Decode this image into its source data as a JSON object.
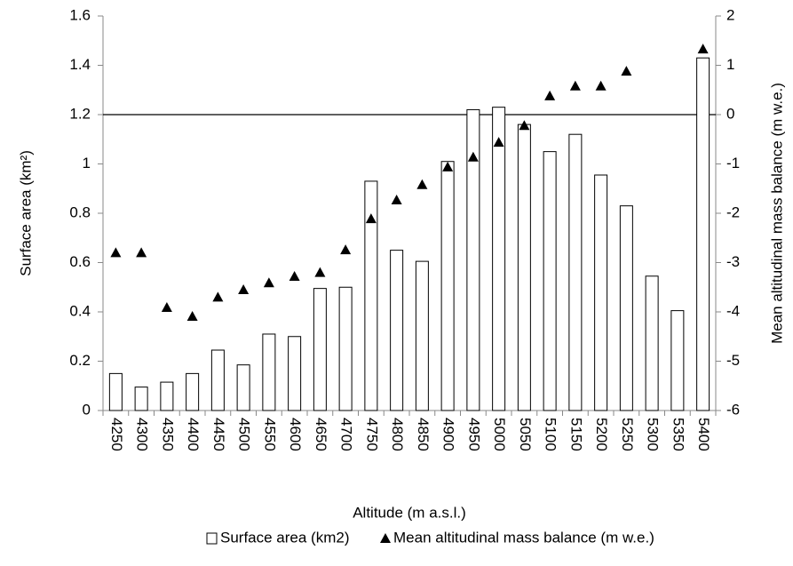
{
  "chart_data": {
    "type": "bar_with_points",
    "x_label": "Altitude (m a.s.l.)",
    "y_label": "Surface area  (km²)",
    "y2_label": "Mean altitudinal mass balance  (m w.e.)",
    "categories": [
      "4250",
      "4300",
      "4350",
      "4400",
      "4450",
      "4500",
      "4550",
      "4600",
      "4650",
      "4700",
      "4750",
      "4800",
      "4850",
      "4900",
      "4950",
      "5000",
      "5050",
      "5100",
      "5150",
      "5200",
      "5250",
      "5300",
      "5350",
      "5400"
    ],
    "series": [
      {
        "name": "Surface area (km2)",
        "type": "bar",
        "color": "#ffffff",
        "edge": "#000000",
        "values": [
          0.15,
          0.095,
          0.115,
          0.15,
          0.245,
          0.185,
          0.31,
          0.3,
          0.495,
          0.5,
          0.93,
          0.65,
          0.605,
          1.01,
          1.22,
          1.23,
          1.16,
          1.05,
          1.12,
          0.955,
          0.83,
          0.545,
          0.405,
          1.43
        ]
      },
      {
        "name": "Mean altitudinal mass balance  (m w.e.)",
        "type": "triangle",
        "axis": "y2",
        "color": "#000000",
        "values": [
          -2.8,
          -2.8,
          -3.91,
          -4.09,
          -3.7,
          -3.55,
          -3.41,
          -3.28,
          -3.2,
          -2.74,
          -2.11,
          -1.73,
          -1.42,
          -1.06,
          -0.86,
          -0.56,
          -0.22,
          0.38,
          0.58,
          0.58,
          0.88,
          null,
          null,
          1.33
        ]
      }
    ],
    "ylim": [
      0,
      1.6
    ],
    "yticks": [
      0,
      0.2,
      0.4,
      0.6,
      0.8,
      1,
      1.2,
      1.4,
      1.6
    ],
    "y2lim": [
      -6,
      2
    ],
    "y2ticks": [
      -6,
      -5,
      -4,
      -3,
      -2,
      -1,
      0,
      1,
      2
    ],
    "y2_reference_line": 0,
    "legend": "bottom"
  }
}
